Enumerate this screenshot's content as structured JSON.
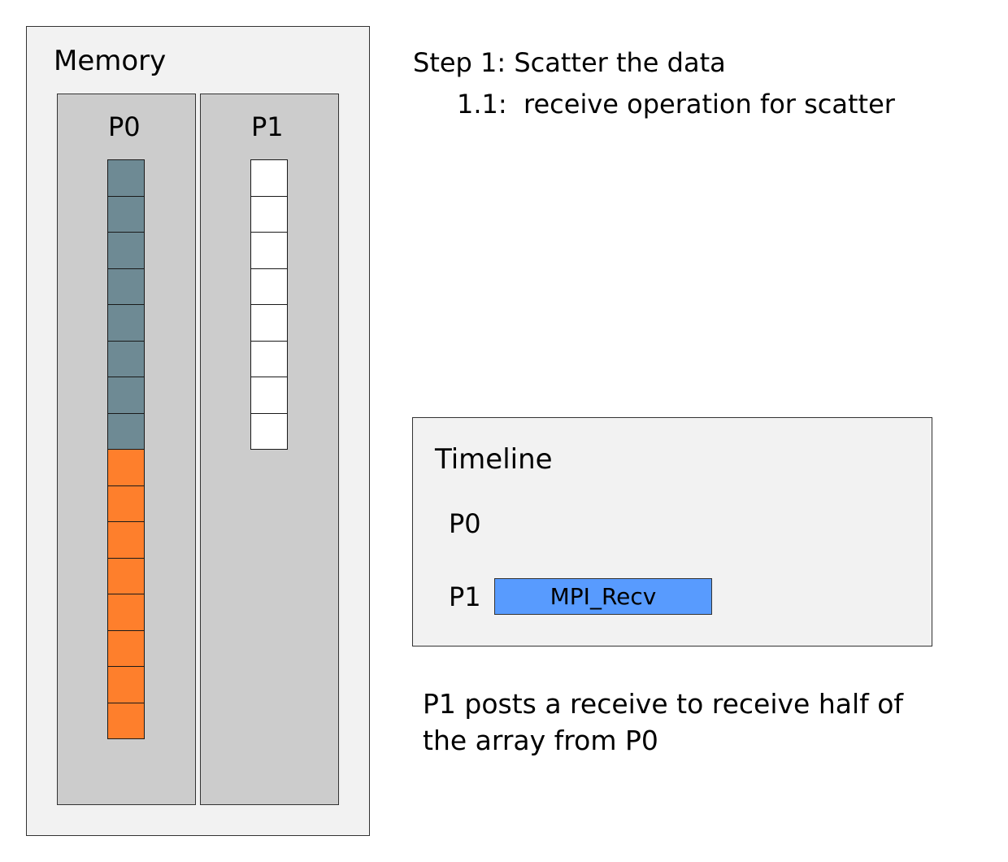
{
  "memory": {
    "title": "Memory",
    "processes": [
      {
        "label": "P0",
        "cells": [
          "#6e8a94",
          "#6e8a94",
          "#6e8a94",
          "#6e8a94",
          "#6e8a94",
          "#6e8a94",
          "#6e8a94",
          "#6e8a94",
          "#fe7f2c",
          "#fe7f2c",
          "#fe7f2c",
          "#fe7f2c",
          "#fe7f2c",
          "#fe7f2c",
          "#fe7f2c",
          "#fe7f2c"
        ]
      },
      {
        "label": "P1",
        "cells": [
          "#ffffff",
          "#ffffff",
          "#ffffff",
          "#ffffff",
          "#ffffff",
          "#ffffff",
          "#ffffff",
          "#ffffff"
        ]
      }
    ]
  },
  "step": {
    "title": "Step 1: Scatter the data",
    "substep": "1.1:  receive operation for scatter"
  },
  "timeline": {
    "title": "Timeline",
    "rows": [
      {
        "label": "P0"
      },
      {
        "label": "P1",
        "event": {
          "label": "MPI_Recv",
          "color": "#589bfe"
        }
      }
    ]
  },
  "description": {
    "line1": "P1 posts a receive to receive half of",
    "line2": "the array from P0"
  }
}
